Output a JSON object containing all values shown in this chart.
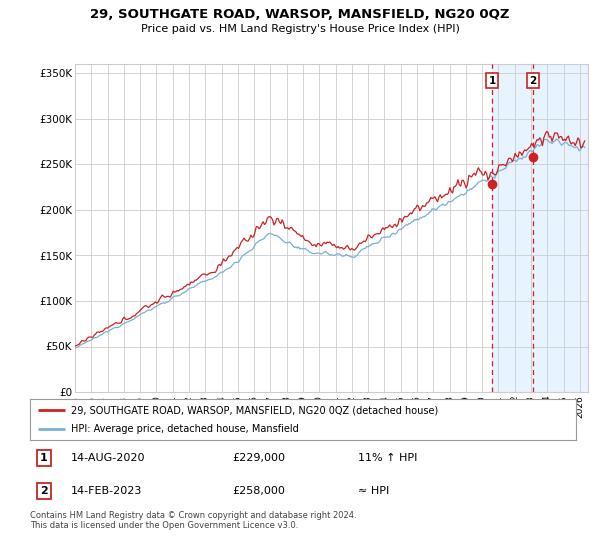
{
  "title": "29, SOUTHGATE ROAD, WARSOP, MANSFIELD, NG20 0QZ",
  "subtitle": "Price paid vs. HM Land Registry's House Price Index (HPI)",
  "ylabel_ticks": [
    "£0",
    "£50K",
    "£100K",
    "£150K",
    "£200K",
    "£250K",
    "£300K",
    "£350K"
  ],
  "ytick_vals": [
    0,
    50000,
    100000,
    150000,
    200000,
    250000,
    300000,
    350000
  ],
  "ylim": [
    0,
    360000
  ],
  "xlim_start": 1995.0,
  "xlim_end": 2026.5,
  "legend_line1": "29, SOUTHGATE ROAD, WARSOP, MANSFIELD, NG20 0QZ (detached house)",
  "legend_line2": "HPI: Average price, detached house, Mansfield",
  "event1_num": "1",
  "event1_date": "14-AUG-2020",
  "event1_price": "£229,000",
  "event1_note": "11% ↑ HPI",
  "event2_num": "2",
  "event2_date": "14-FEB-2023",
  "event2_price": "£258,000",
  "event2_note": "≈ HPI",
  "event1_x": 2020.62,
  "event2_x": 2023.12,
  "footer": "Contains HM Land Registry data © Crown copyright and database right 2024.\nThis data is licensed under the Open Government Licence v3.0.",
  "hpi_color": "#7bafd4",
  "price_color": "#cc2222",
  "shade_color": "#ddeeff",
  "dashed_color": "#cc2222",
  "background_color": "#ffffff",
  "grid_color": "#cccccc",
  "event1_dot_y": 229000,
  "event2_dot_y": 258000
}
